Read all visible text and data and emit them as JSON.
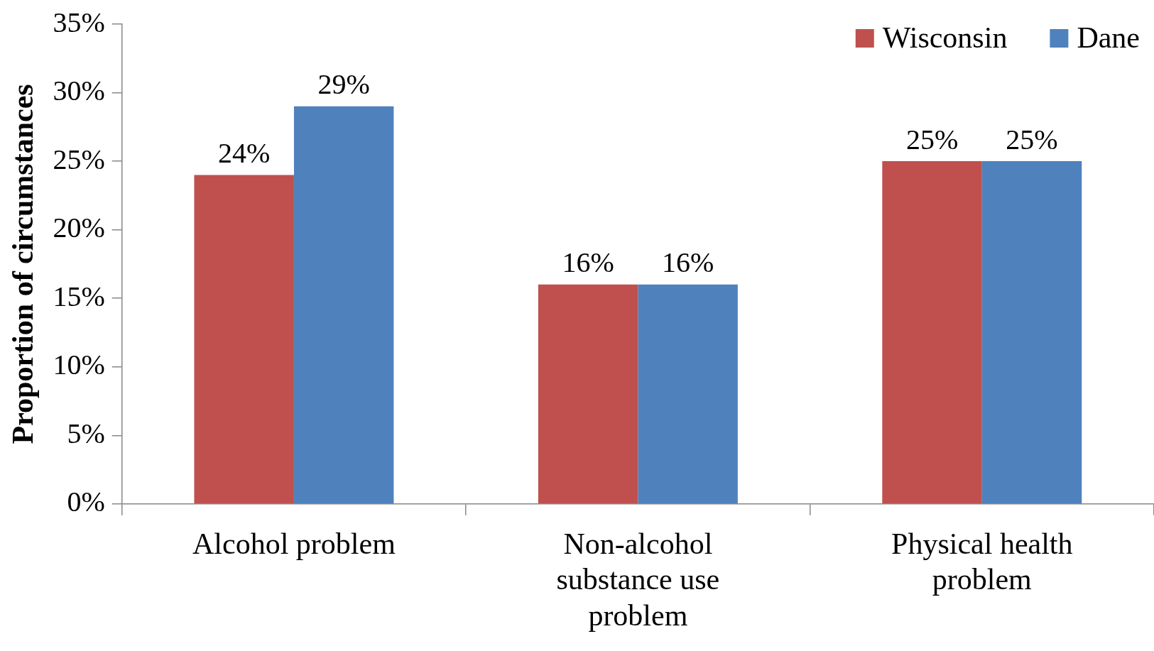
{
  "chart_data": {
    "type": "bar",
    "ylabel": "Proportion of circumstances",
    "categories": [
      "Alcohol problem",
      "Non-alcohol substance use problem",
      "Physical health problem"
    ],
    "series": [
      {
        "name": "Wisconsin",
        "color": "#c0504d",
        "values": [
          24,
          16,
          25
        ],
        "value_labels": [
          "24%",
          "16%",
          "25%"
        ]
      },
      {
        "name": "Dane",
        "color": "#4f81bd",
        "values": [
          29,
          16,
          25
        ],
        "value_labels": [
          "29%",
          "16%",
          "25%"
        ]
      }
    ],
    "ylim": [
      0,
      35
    ],
    "yticks": [
      {
        "value": 0,
        "label": "0%"
      },
      {
        "value": 5,
        "label": "5%"
      },
      {
        "value": 10,
        "label": "10%"
      },
      {
        "value": 15,
        "label": "15%"
      },
      {
        "value": 20,
        "label": "20%"
      },
      {
        "value": 25,
        "label": "25%"
      },
      {
        "value": 30,
        "label": "30%"
      },
      {
        "value": 35,
        "label": "35%"
      }
    ],
    "grid": false,
    "legend": "top right"
  }
}
